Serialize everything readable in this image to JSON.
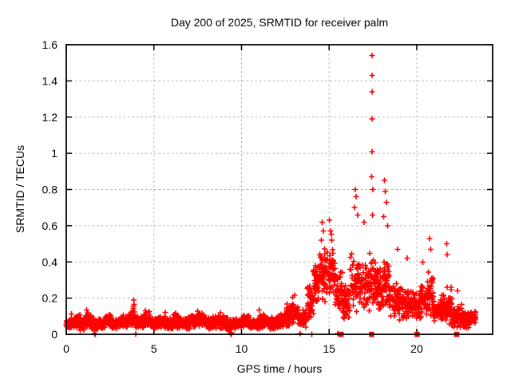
{
  "figure": {
    "background": "#ffffff"
  },
  "chart_data": {
    "type": "scatter",
    "title": "Day 200 of 2025, SRMTID for receiver palm",
    "xlabel": "GPS time / hours",
    "ylabel": "SRMTID / TECUs",
    "xlim": [
      0,
      24.33
    ],
    "ylim": [
      0,
      1.6
    ],
    "xticks": [
      0,
      5,
      10,
      15,
      20
    ],
    "xtick_labels": [
      "0",
      "5",
      "10",
      "15",
      "20"
    ],
    "yticks": [
      0,
      0.2,
      0.4,
      0.6,
      0.8,
      1,
      1.2,
      1.4,
      1.6
    ],
    "ytick_labels": [
      "0",
      "0.2",
      "0.4",
      "0.6",
      "0.8",
      "1",
      "1.2",
      "1.4",
      "1.6"
    ],
    "grid": true,
    "legend": "none",
    "marker": {
      "shape": "plus",
      "color": "#ff0000",
      "size": 7
    },
    "colors": {
      "points": "#ff0000",
      "grid": "#b4b4b4",
      "border": "#000000",
      "text": "#000000"
    },
    "seed": 200,
    "baseline_segments": [
      [
        0.0,
        0.45,
        60,
        0.055,
        0.035
      ],
      [
        0.45,
        0.75,
        40,
        0.07,
        0.04
      ],
      [
        0.75,
        1.1,
        45,
        0.06,
        0.04
      ],
      [
        1.1,
        1.45,
        45,
        0.075,
        0.045
      ],
      [
        1.45,
        1.8,
        45,
        0.05,
        0.04
      ],
      [
        1.8,
        2.2,
        50,
        0.06,
        0.035
      ],
      [
        2.2,
        2.6,
        50,
        0.075,
        0.04
      ],
      [
        2.6,
        3.1,
        60,
        0.055,
        0.03
      ],
      [
        3.1,
        3.5,
        50,
        0.07,
        0.04
      ],
      [
        3.5,
        3.75,
        30,
        0.08,
        0.045
      ],
      [
        3.75,
        3.95,
        25,
        0.1,
        0.055
      ],
      [
        3.95,
        4.4,
        55,
        0.065,
        0.04
      ],
      [
        4.4,
        4.8,
        50,
        0.08,
        0.045
      ],
      [
        4.8,
        5.3,
        60,
        0.06,
        0.035
      ],
      [
        5.3,
        5.7,
        45,
        0.07,
        0.04
      ],
      [
        5.7,
        6.1,
        50,
        0.055,
        0.03
      ],
      [
        6.1,
        6.5,
        45,
        0.07,
        0.04
      ],
      [
        6.5,
        7.0,
        55,
        0.06,
        0.035
      ],
      [
        7.0,
        7.5,
        55,
        0.07,
        0.04
      ],
      [
        7.5,
        7.95,
        50,
        0.085,
        0.05
      ],
      [
        7.95,
        8.5,
        60,
        0.06,
        0.035
      ],
      [
        8.5,
        9.0,
        55,
        0.065,
        0.04
      ],
      [
        9.0,
        9.45,
        50,
        0.055,
        0.045
      ],
      [
        9.45,
        10.0,
        55,
        0.06,
        0.035
      ],
      [
        10.0,
        10.5,
        55,
        0.07,
        0.04
      ],
      [
        10.5,
        11.0,
        55,
        0.055,
        0.03
      ],
      [
        11.0,
        11.5,
        55,
        0.075,
        0.045
      ],
      [
        11.5,
        12.0,
        55,
        0.06,
        0.035
      ],
      [
        12.0,
        12.45,
        50,
        0.07,
        0.04
      ],
      [
        12.45,
        12.8,
        40,
        0.1,
        0.06
      ],
      [
        12.8,
        13.25,
        45,
        0.12,
        0.07
      ],
      [
        13.25,
        13.75,
        50,
        0.085,
        0.05
      ],
      [
        13.75,
        14.1,
        40,
        0.17,
        0.1
      ],
      [
        14.1,
        14.45,
        45,
        0.27,
        0.14
      ],
      [
        14.45,
        14.85,
        50,
        0.33,
        0.17
      ],
      [
        14.85,
        15.35,
        55,
        0.33,
        0.16
      ],
      [
        15.35,
        15.75,
        45,
        0.24,
        0.13
      ],
      [
        15.75,
        16.2,
        45,
        0.18,
        0.11
      ],
      [
        16.2,
        16.75,
        50,
        0.3,
        0.19
      ],
      [
        16.75,
        17.2,
        45,
        0.27,
        0.16
      ],
      [
        17.2,
        17.7,
        55,
        0.3,
        0.18
      ],
      [
        17.7,
        18.05,
        40,
        0.24,
        0.14
      ],
      [
        18.05,
        18.45,
        45,
        0.28,
        0.16
      ],
      [
        18.45,
        19.0,
        55,
        0.18,
        0.11
      ],
      [
        19.0,
        19.6,
        60,
        0.17,
        0.1
      ],
      [
        19.6,
        20.2,
        60,
        0.16,
        0.09
      ],
      [
        20.2,
        20.6,
        45,
        0.19,
        0.11
      ],
      [
        20.6,
        20.95,
        40,
        0.22,
        0.12
      ],
      [
        20.95,
        21.5,
        55,
        0.13,
        0.08
      ],
      [
        21.5,
        22.0,
        55,
        0.14,
        0.09
      ],
      [
        22.0,
        22.6,
        70,
        0.09,
        0.06
      ],
      [
        22.6,
        23.05,
        60,
        0.08,
        0.05
      ],
      [
        23.05,
        23.35,
        35,
        0.09,
        0.04
      ]
    ],
    "peak_points": [
      [
        3.85,
        0.19
      ],
      [
        3.87,
        0.165
      ],
      [
        3.83,
        0.155
      ],
      [
        12.92,
        0.205
      ],
      [
        13.02,
        0.215
      ],
      [
        14.55,
        0.52
      ],
      [
        14.6,
        0.62
      ],
      [
        14.66,
        0.57
      ],
      [
        15.02,
        0.63
      ],
      [
        15.08,
        0.57
      ],
      [
        15.15,
        0.52
      ],
      [
        16.45,
        0.7
      ],
      [
        16.5,
        0.8
      ],
      [
        16.55,
        0.76
      ],
      [
        16.62,
        0.66
      ],
      [
        17.0,
        0.62
      ],
      [
        17.44,
        1.54
      ],
      [
        17.45,
        1.43
      ],
      [
        17.44,
        1.34
      ],
      [
        17.46,
        1.19
      ],
      [
        17.45,
        1.01
      ],
      [
        17.42,
        0.87
      ],
      [
        17.5,
        0.8
      ],
      [
        17.48,
        0.66
      ],
      [
        18.12,
        0.65
      ],
      [
        18.16,
        0.85
      ],
      [
        18.2,
        0.79
      ],
      [
        18.26,
        0.73
      ],
      [
        18.33,
        0.6
      ],
      [
        18.9,
        0.47
      ],
      [
        19.45,
        0.42
      ],
      [
        20.35,
        0.4
      ],
      [
        20.74,
        0.53
      ],
      [
        20.8,
        0.47
      ],
      [
        21.7,
        0.5
      ],
      [
        21.74,
        0.44
      ],
      [
        22.32,
        0.24
      ]
    ],
    "near_zero_points": [
      [
        1.62,
        0.004
      ],
      [
        1.66,
        0.0
      ],
      [
        3.96,
        0.003
      ],
      [
        9.38,
        0.004
      ],
      [
        9.41,
        0.0
      ],
      [
        9.44,
        0.008
      ],
      [
        13.35,
        0.004
      ],
      [
        14.02,
        0.0
      ],
      [
        15.5,
        0.004
      ]
    ],
    "zero_square_hours": [
      15.68,
      17.42,
      20.02,
      22.28
    ],
    "zero_square_size": 6.5
  }
}
